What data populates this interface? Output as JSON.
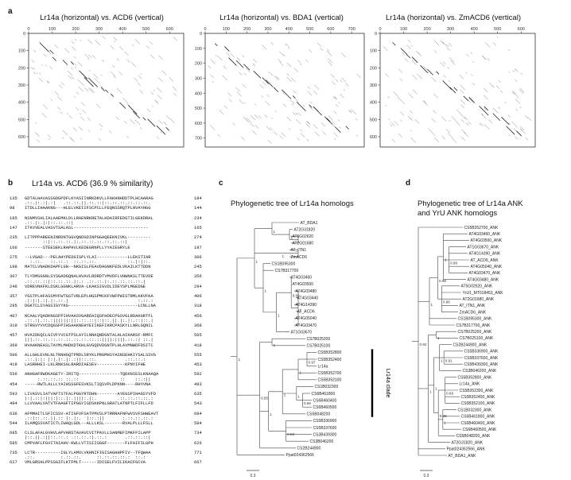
{
  "panel_a": {
    "letter": "a",
    "plots": [
      {
        "title": "Lr14a (horizontal) vs. ACD6 (vertical)",
        "xticks": [
          "0",
          "100",
          "200",
          "300",
          "400",
          "500",
          "600"
        ],
        "yticks": [
          "0",
          "100",
          "200",
          "300",
          "400",
          "500",
          "600"
        ]
      },
      {
        "title": "Lr14a (horizontal) vs. BDA1 (vertical)",
        "xticks": [
          "0",
          "100",
          "200",
          "300",
          "400",
          "500",
          "600",
          "700"
        ],
        "yticks": [
          "0",
          "100",
          "200",
          "300",
          "400",
          "500",
          "600",
          "700"
        ]
      },
      {
        "title": "Lr14a (horizontal) vs. ZmACD6 (vertical)",
        "xticks": [
          "0",
          "100",
          "200",
          "300",
          "400",
          "500",
          "600"
        ],
        "yticks": [
          "0",
          "100",
          "200",
          "300",
          "400",
          "500",
          "600"
        ]
      }
    ]
  },
  "panel_b": {
    "letter": "b",
    "title": "Lr14a vs. ACD6 (36.9 % similarity)",
    "blocks": [
      {
        "top_start": "135",
        "top": "GDTALHAVASSGDGPDFLKYASIINRKDKVLLFAKHNHDDTPLHCAARAG",
        "top_end": "184",
        "bottom_start": "98",
        "bottom": "ITDLLIHAAKNG---HLELVKEIIFSCPCLLFEQNSSRQTPLHVAYHGG",
        "bottom_end": "144"
      },
      {
        "top_start": "185",
        "top": "NSNMVSHLIALAAEMKLDLLRAENRKRETALHDAIRFEDGTILGEKDRAL",
        "top_end": "234",
        "bottom_start": "147",
        "bottom": "ITKVVEALVASVTSALASL-----------------------------",
        "bottom_end": "165"
      },
      {
        "top_start": "235",
        "top": "LITPPPAREENINRDNTGGVQNDGDINPGGAQEEKNIVKL---------",
        "top_end": "274",
        "bottom_start": "166",
        "bottom": "-------STEESEKLRAPHVLKEDEGRNPLLYYAIEGRYLE",
        "bottom_end": "197"
      },
      {
        "top_start": "275",
        "top": "--LVGAD---PELAHYPEDGISPLYLAI------------LLEKSTIAR",
        "top_end": "306",
        "bottom_start": "198",
        "bottom": "MATCLVNADKDAPFLGN--NKGISLFEAVDAGNKFEDLVKAILKTTDDN",
        "bottom_end": "245"
      },
      {
        "top_start": "307",
        "top": "TLYDMSGGNLSYSGADGQNALHVAVLRDRDTVMVDFLVHWNKSLTTEVDE",
        "top_end": "356",
        "bottom_start": "246",
        "bottom": "VDREVNKFKLDSKLGGNKLARVA-LKAKSIGVDLIDEYSPLMGEDGE",
        "bottom_end": "294"
      },
      {
        "top_start": "357",
        "top": "YGSTPLHFASSMYFWTGSTVRLEPLHGSPMCKFVWFPWISTRMLKKVFKA",
        "top_end": "406",
        "bottom_start": "295",
        "bottom": "DGKTCLSYAGSIGYYKG---------------------------LCNLLNA",
        "bottom_end": "318"
      },
      {
        "top_start": "407",
        "top": "NCAALYQADKNGSFPIHVAASVGARDAIQSFHDECPGSVGLRDAKGRTFL",
        "top_end": "456",
        "bottom_start": "319",
        "bottom": "STRGVYVVCDQGSFPIHSAAKNEHYEIIKEFIKRCPASKYLLNRLGQNIL",
        "bottom_end": "368"
      },
      {
        "top_start": "457",
        "top": "HVAIDKQCLGIVFYVCGTPSLAYILNNKQNDGNTALHLAIKARSF-RMFC",
        "top_end": "505",
        "bottom_start": "369",
        "bottom": "HVAAKNEASLTAYMLMHDKDTKHLGVGQDVDGNTPLHLAVMNWDFDSITC",
        "bottom_end": "418"
      },
      {
        "top_start": "506",
        "top": "ALLGHLEVNLNLTNNHGQTPRDLSRYKLPRGMHSYASNSEHKIYSALSSVG",
        "top_end": "555",
        "bottom_start": "419",
        "bottom": "LASRHHEI-LKLRNKSGLRARDIAESEV-----------KPNYIFHE",
        "bottom_end": "453"
      },
      {
        "top_start": "556",
        "top": "ANHGAFRWDKAGETY-IRITQ----------------TQEKNIESLKNAAQA",
        "top_end": "592",
        "bottom_start": "454",
        "bottom": "-----RWTLALLLYAIHSSGFESVKSLTIQSVPLDPKNN----RHYVNA",
        "bottom_end": "493"
      },
      {
        "top_start": "593",
        "top": "LIVASVLIATVAFTSTFALPGGYRTDHN--------AYEGSPIHAGSYVFD",
        "top_end": "635",
        "bottom_start": "494",
        "bottom": "LLVVAALVATVTFAAGFTIPGGYISDSKKPNLGRATLATNPTLFIFLLFD",
        "bottom_end": "543"
      },
      {
        "top_start": "636",
        "top": "AFMMAITLSFICSSV-ATIGFVFSATPMVSLPTRRRAFNFWVSVFSHWEAVT",
        "top_end": "684",
        "bottom_start": "544",
        "bottom": "ILAMQSSVATICTLIWAQLGDL--ALLLKSL-------RVALPLLLFSLL",
        "bottom_end": "584"
      },
      {
        "top_start": "685",
        "top": "CLSLAFALGVHVLAPVARSTAVAVCVITPAVLLSANMEFIMKFFILAPP",
        "top_end": "734",
        "bottom_start": "585",
        "bottom": "CMPVAFLFGVITAIAHV-KWLLVTISIISGGF-------FLFAIFILGPH",
        "bottom_end": "626"
      },
      {
        "top_start": "735",
        "top": "LCTR----------IGLYLAMVLVKHNIFIGISAGHHPFIV--TFQWAA",
        "top_end": "771",
        "bottom_start": "627",
        "bottom": "VMLGRSHLPPSSGIFLKTFMLT------IDISELFVILIKACFGCVA",
        "bottom_end": "667"
      }
    ]
  },
  "panel_c": {
    "letter": "c",
    "title": "Phylogenetic tree of Lr14a homologs",
    "clade_label": "Lr14a clade",
    "scale_label": "0.3",
    "leaves": [
      "AT_BDA1",
      "AT2G31820",
      "AT5G02620",
      "AT2G01680",
      "AT_ITN1",
      "ZmACD6",
      "CS1B095300",
      "CS7B317700",
      "AT4G03460",
      "AT4G03500",
      "AT4G03480",
      "AT4G03440",
      "AT4G14390",
      "AT_ACD6",
      "AT4G05040",
      "AT4G03470",
      "AT1G03670",
      "CS7B025200",
      "CS7B025100",
      "CS5B352800",
      "CS5B352400",
      "Lr14a",
      "CS5B352700",
      "CS5B352100",
      "CS1B032300",
      "CS6B461800",
      "CS6B460400",
      "CS6B460500",
      "CS5B048200",
      "CS5B336900",
      "CS5B337600",
      "CS3B439300",
      "CS3B046200",
      "CS2B244900",
      "Ppat024362566"
    ],
    "support": [
      "1",
      "1",
      "1",
      "1",
      "0.95",
      "1",
      "1",
      "1",
      "1",
      "0.97",
      "1",
      "0.86",
      "1",
      "1",
      "0.93",
      "1",
      "0.95",
      "1",
      "0.87",
      "1",
      "1"
    ]
  },
  "panel_d": {
    "letter": "d",
    "title_line1": "Phylogenetic tree of Lr14a ANK",
    "title_line2": "and YrU ANK homologs",
    "leaves": [
      "CS5B352700_ANK",
      "AT4G03460_ANK",
      "AT4G03500_ANK",
      "AT1G03670_ANK",
      "AT4G14390_ANK",
      "AT_ACD6_ANK",
      "AT4G05040_ANK",
      "AT4G03470_ANK",
      "AT4G03480_ANK",
      "AT5G02620_ANK",
      "YrU1_MT018453_ANK",
      "AT2G01680_ANK",
      "AT_ITN1_ANK",
      "ZmACD6_ANK",
      "CS1B095300_ANK",
      "CS7B317700_ANK",
      "CS7B025200_ANK",
      "CS7B025100_ANK",
      "CS2B244900_ANK",
      "CS5B336900_ANK",
      "CS5B337600_ANK",
      "CS5B439300_ANK",
      "CS3B046200_ANK",
      "CS5B352800_ANK",
      "Lr14a_ANK",
      "CS5B352300_ANK",
      "CS5B352400_ANK",
      "CS5B352100_ANK",
      "CS1B032300_ANK",
      "CS6B461800_ANK",
      "CS6B460400_ANK",
      "CS6B460500_ANK",
      "CS5B048200_ANK",
      "AT2G31820_ANK",
      "Ppat024362566_ANK",
      "AT_BDA1_ANK"
    ],
    "support": [
      "0.99",
      "1",
      "0.96",
      "0.98",
      "1",
      "1",
      "0.91",
      "1",
      "0.69",
      "1",
      "0.98",
      "1",
      "1",
      "0.92",
      "1",
      "1",
      "1",
      "0.69"
    ],
    "scale_label": "0.3"
  }
}
